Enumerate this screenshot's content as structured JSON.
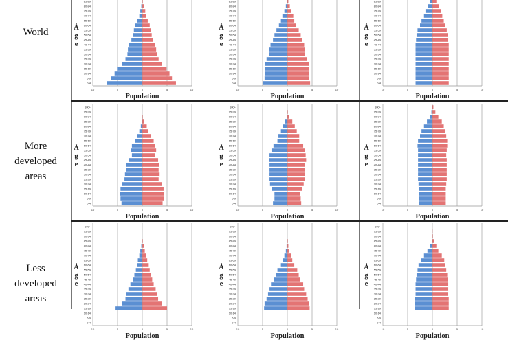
{
  "colors": {
    "male": "#5b8fd2",
    "female": "#e37474",
    "grid": "#bdbdbd"
  },
  "axis": {
    "xlabel": "Population",
    "ylabel_letters": [
      "Å",
      "g",
      "e"
    ],
    "ticks": [
      "10",
      "5",
      "0",
      "5",
      "10"
    ]
  },
  "rows": [
    {
      "label_lines": [
        "World"
      ]
    },
    {
      "label_lines": [
        "More",
        "developed",
        "areas"
      ]
    },
    {
      "label_lines": [
        "Less",
        "developed",
        "areas"
      ]
    }
  ],
  "chart_data": [
    {
      "type": "bar",
      "orientation": "population-pyramid",
      "row": "World",
      "col": 1,
      "xlim": [
        -10,
        10
      ],
      "categories": [
        "0-4",
        "5-9",
        "10-14",
        "15-19",
        "20-24",
        "25-29",
        "30-34",
        "35-39",
        "40-44",
        "45-49",
        "50-54",
        "55-59",
        "60-64",
        "65-69",
        "70-74",
        "75-79",
        "80-84",
        "85-89"
      ],
      "series": [
        {
          "side": "left",
          "values": [
            7.2,
            6.3,
            5.6,
            5.1,
            4.1,
            3.4,
            3.0,
            2.9,
            2.7,
            2.2,
            1.9,
            1.7,
            1.4,
            1.0,
            0.6,
            0.4,
            0.2,
            0.1
          ]
        },
        {
          "side": "right",
          "values": [
            6.8,
            6.0,
            5.5,
            4.9,
            4.0,
            3.3,
            3.0,
            2.8,
            2.6,
            2.2,
            1.9,
            1.8,
            1.5,
            1.1,
            0.8,
            0.6,
            0.3,
            0.1
          ]
        }
      ]
    },
    {
      "type": "bar",
      "orientation": "population-pyramid",
      "row": "World",
      "col": 2,
      "xlim": [
        -10,
        10
      ],
      "categories": [
        "0-4",
        "5-9",
        "10-14",
        "15-19",
        "20-24",
        "25-29",
        "30-34",
        "35-39",
        "40-44",
        "45-49",
        "50-54",
        "55-59",
        "60-64",
        "65-69",
        "70-74",
        "75-79",
        "80-84",
        "85-89"
      ],
      "series": [
        {
          "side": "left",
          "values": [
            4.9,
            4.6,
            4.5,
            4.5,
            4.5,
            4.2,
            3.7,
            3.7,
            3.4,
            2.9,
            2.6,
            2.2,
            1.7,
            1.3,
            1.0,
            0.6,
            0.3,
            0.1
          ]
        },
        {
          "side": "right",
          "values": [
            4.6,
            4.4,
            4.4,
            4.4,
            4.4,
            4.0,
            3.6,
            3.5,
            3.4,
            3.0,
            2.7,
            2.3,
            1.8,
            1.4,
            1.2,
            0.8,
            0.5,
            0.2
          ]
        }
      ]
    },
    {
      "type": "bar",
      "orientation": "population-pyramid",
      "row": "World",
      "col": 3,
      "xlim": [
        -10,
        10
      ],
      "categories": [
        "0-4",
        "5-9",
        "10-14",
        "15-19",
        "20-24",
        "25-29",
        "30-34",
        "35-39",
        "40-44",
        "45-49",
        "50-54",
        "55-59",
        "60-64",
        "65-69",
        "70-74",
        "75-79",
        "80-84",
        "85-89"
      ],
      "series": [
        {
          "side": "left",
          "values": [
            3.4,
            3.4,
            3.4,
            3.4,
            3.4,
            3.4,
            3.4,
            3.4,
            3.4,
            3.3,
            3.2,
            3.0,
            2.5,
            2.2,
            1.7,
            1.4,
            0.9,
            0.5
          ]
        },
        {
          "side": "right",
          "values": [
            3.3,
            3.3,
            3.3,
            3.3,
            3.3,
            3.3,
            3.3,
            3.3,
            3.3,
            3.2,
            3.1,
            2.9,
            2.6,
            2.3,
            2.0,
            1.7,
            1.3,
            0.8
          ]
        }
      ]
    },
    {
      "type": "bar",
      "orientation": "population-pyramid",
      "row": "More developed areas",
      "col": 1,
      "xlim": [
        -10,
        10
      ],
      "categories": [
        "0-4",
        "5-9",
        "10-14",
        "15-19",
        "20-24",
        "25-29",
        "30-34",
        "35-39",
        "40-44",
        "45-49",
        "50-54",
        "55-59",
        "60-64",
        "65-69",
        "70-74",
        "75-79",
        "80-84",
        "85-89",
        "90-94",
        "95-99",
        "100+"
      ],
      "series": [
        {
          "side": "left",
          "values": [
            4.2,
            4.4,
            4.5,
            4.4,
            4.1,
            3.6,
            3.5,
            3.3,
            3.3,
            2.7,
            2.1,
            2.3,
            2.1,
            1.5,
            1.1,
            0.6,
            0.3,
            0.1,
            0,
            0,
            0
          ]
        },
        {
          "side": "right",
          "values": [
            4.1,
            4.4,
            4.4,
            4.3,
            4.0,
            3.3,
            3.5,
            3.3,
            3.4,
            3.2,
            2.5,
            2.8,
            2.6,
            2.3,
            1.7,
            1.2,
            0.9,
            0.3,
            0.1,
            0,
            0
          ]
        }
      ]
    },
    {
      "type": "bar",
      "orientation": "population-pyramid",
      "row": "More developed areas",
      "col": 2,
      "xlim": [
        -10,
        10
      ],
      "categories": [
        "0-4",
        "5-9",
        "10-14",
        "15-19",
        "20-24",
        "25-29",
        "30-34",
        "35-39",
        "40-44",
        "45-49",
        "50-54",
        "55-59",
        "60-64",
        "65-69",
        "70-74",
        "75-79",
        "80-84",
        "85-89",
        "90-94",
        "95-99",
        "100+"
      ],
      "series": [
        {
          "side": "left",
          "values": [
            2.9,
            2.6,
            2.6,
            3.1,
            3.5,
            3.6,
            3.6,
            3.6,
            3.6,
            3.7,
            3.6,
            3.2,
            2.8,
            2.0,
            1.8,
            1.3,
            0.9,
            0.5,
            0.1,
            0,
            0
          ]
        },
        {
          "side": "right",
          "values": [
            2.8,
            2.7,
            2.6,
            3.0,
            3.3,
            3.5,
            3.5,
            3.6,
            3.6,
            3.8,
            3.7,
            3.5,
            3.2,
            2.4,
            2.4,
            1.9,
            1.5,
            1.0,
            0.4,
            0.1,
            0
          ]
        }
      ]
    },
    {
      "type": "bar",
      "orientation": "population-pyramid",
      "row": "More developed areas",
      "col": 3,
      "xlim": [
        -10,
        10
      ],
      "categories": [
        "0-4",
        "5-9",
        "10-14",
        "15-19",
        "20-24",
        "25-29",
        "30-34",
        "35-39",
        "40-44",
        "45-49",
        "50-54",
        "55-59",
        "60-64",
        "65-69",
        "70-74",
        "75-79",
        "80-84",
        "85-89",
        "90-94",
        "95-99",
        "100+"
      ],
      "series": [
        {
          "side": "left",
          "values": [
            2.7,
            2.7,
            2.7,
            2.7,
            2.8,
            2.9,
            2.9,
            2.9,
            2.9,
            2.9,
            2.9,
            2.9,
            3.0,
            2.9,
            2.5,
            2.2,
            1.7,
            1.1,
            0.5,
            0.2,
            0.05
          ]
        },
        {
          "side": "right",
          "values": [
            2.7,
            2.7,
            2.7,
            2.7,
            2.8,
            2.9,
            2.9,
            2.9,
            2.9,
            2.9,
            2.8,
            2.9,
            3.0,
            3.0,
            2.8,
            2.6,
            2.3,
            1.9,
            1.2,
            0.6,
            0.2
          ]
        }
      ]
    },
    {
      "type": "bar",
      "orientation": "population-pyramid",
      "row": "Less developed areas",
      "col": 1,
      "xlim": [
        -10,
        10
      ],
      "categories": [
        "15-19",
        "20-24",
        "25-29",
        "30-34",
        "35-39",
        "40-44",
        "45-49",
        "50-54",
        "55-59",
        "60-64",
        "65-69",
        "70-74",
        "75-79",
        "80-84",
        "85-89",
        "90-94",
        "95-99",
        "100+"
      ],
      "series": [
        {
          "side": "left",
          "values": [
            5.4,
            4.1,
            3.4,
            3.2,
            2.8,
            2.4,
            1.9,
            1.6,
            1.3,
            1.1,
            0.9,
            0.6,
            0.4,
            0.2,
            0.1,
            0,
            0,
            0
          ]
        },
        {
          "side": "right",
          "values": [
            5.0,
            3.9,
            3.2,
            3.0,
            2.7,
            2.3,
            2.0,
            1.8,
            1.5,
            1.3,
            1.0,
            0.7,
            0.5,
            0.3,
            0.1,
            0,
            0,
            0
          ]
        }
      ]
    },
    {
      "type": "bar",
      "orientation": "population-pyramid",
      "row": "Less developed areas",
      "col": 2,
      "xlim": [
        -10,
        10
      ],
      "categories": [
        "15-19",
        "20-24",
        "25-29",
        "30-34",
        "35-39",
        "40-44",
        "45-49",
        "50-54",
        "55-59",
        "60-64",
        "65-69",
        "70-74",
        "75-79",
        "80-84",
        "85-89",
        "90-94",
        "95-99",
        "100+"
      ],
      "series": [
        {
          "side": "left",
          "values": [
            4.7,
            4.6,
            4.2,
            3.9,
            3.6,
            3.3,
            2.7,
            2.3,
            2.0,
            1.3,
            0.9,
            0.6,
            0.3,
            0.15,
            0.05,
            0,
            0,
            0
          ]
        },
        {
          "side": "right",
          "values": [
            4.5,
            4.4,
            4.1,
            3.8,
            3.4,
            3.2,
            2.6,
            2.3,
            2.0,
            1.4,
            1.0,
            0.7,
            0.4,
            0.2,
            0.1,
            0,
            0,
            0
          ]
        }
      ]
    },
    {
      "type": "bar",
      "orientation": "population-pyramid",
      "row": "Less developed areas",
      "col": 3,
      "xlim": [
        -10,
        10
      ],
      "categories": [
        "15-19",
        "20-24",
        "25-29",
        "30-34",
        "35-39",
        "40-44",
        "45-49",
        "50-54",
        "55-59",
        "60-64",
        "65-69",
        "70-74",
        "75-79",
        "80-84",
        "85-89",
        "90-94",
        "95-99",
        "100+"
      ],
      "series": [
        {
          "side": "left",
          "values": [
            3.5,
            3.5,
            3.5,
            3.4,
            3.4,
            3.4,
            3.3,
            3.2,
            3.0,
            2.8,
            2.3,
            1.7,
            1.0,
            0.5,
            0.1,
            0.05,
            0,
            0
          ]
        },
        {
          "side": "right",
          "values": [
            3.3,
            3.3,
            3.3,
            3.2,
            3.2,
            3.2,
            3.1,
            3.0,
            2.8,
            2.6,
            2.4,
            1.9,
            1.2,
            0.8,
            0.3,
            0.1,
            0.05,
            0
          ]
        }
      ]
    }
  ]
}
